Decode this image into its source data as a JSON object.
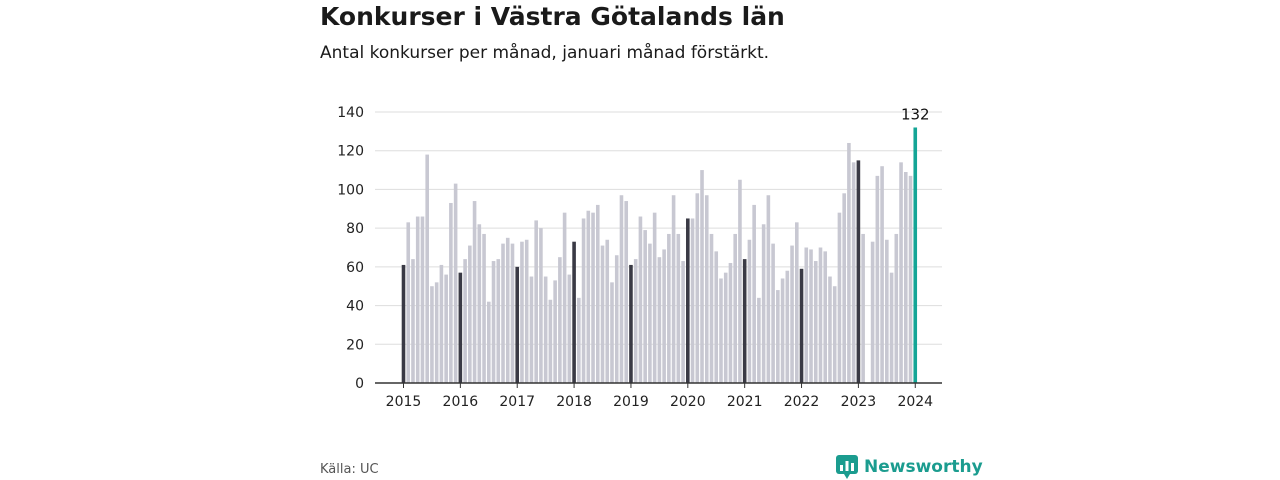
{
  "header": {
    "title": "Konkurser i Västra Götalands län",
    "subtitle": "Antal konkurser per månad, januari månad förstärkt."
  },
  "footer": {
    "source": "Källa: UC",
    "brand": "Newsworthy"
  },
  "colors": {
    "regular_bar": "#c8c8d2",
    "january_bar": "#3a3a45",
    "latest_bar": "#14a596",
    "grid": "#dddddd",
    "axis": "#333333"
  },
  "chart_data": {
    "type": "bar",
    "title": "Konkurser i Västra Götalands län",
    "subtitle": "Antal konkurser per månad, januari månad förstärkt.",
    "xlabel": "",
    "ylabel": "",
    "ylim": [
      0,
      140
    ],
    "yticks": [
      0,
      20,
      40,
      60,
      80,
      100,
      120,
      140
    ],
    "year_labels": [
      "2015",
      "2016",
      "2017",
      "2018",
      "2019",
      "2020",
      "2021",
      "2022",
      "2023",
      "2024"
    ],
    "start": "2015-01",
    "highlight_label": "132",
    "grid": true,
    "values": [
      61,
      83,
      64,
      86,
      86,
      118,
      50,
      52,
      61,
      56,
      93,
      103,
      57,
      64,
      71,
      94,
      82,
      77,
      42,
      63,
      64,
      72,
      75,
      72,
      60,
      73,
      74,
      55,
      84,
      80,
      55,
      43,
      53,
      65,
      88,
      56,
      73,
      44,
      85,
      89,
      88,
      92,
      71,
      74,
      52,
      66,
      97,
      94,
      61,
      64,
      86,
      79,
      72,
      88,
      65,
      69,
      77,
      97,
      77,
      63,
      85,
      85,
      98,
      110,
      97,
      77,
      68,
      54,
      57,
      62,
      77,
      105,
      64,
      74,
      92,
      44,
      82,
      97,
      72,
      48,
      54,
      58,
      71,
      83,
      59,
      70,
      69,
      63,
      70,
      68,
      55,
      50,
      88,
      98,
      124,
      114,
      115,
      77,
      null,
      73,
      107,
      112,
      74,
      57,
      77,
      114,
      109,
      107,
      132
    ]
  }
}
